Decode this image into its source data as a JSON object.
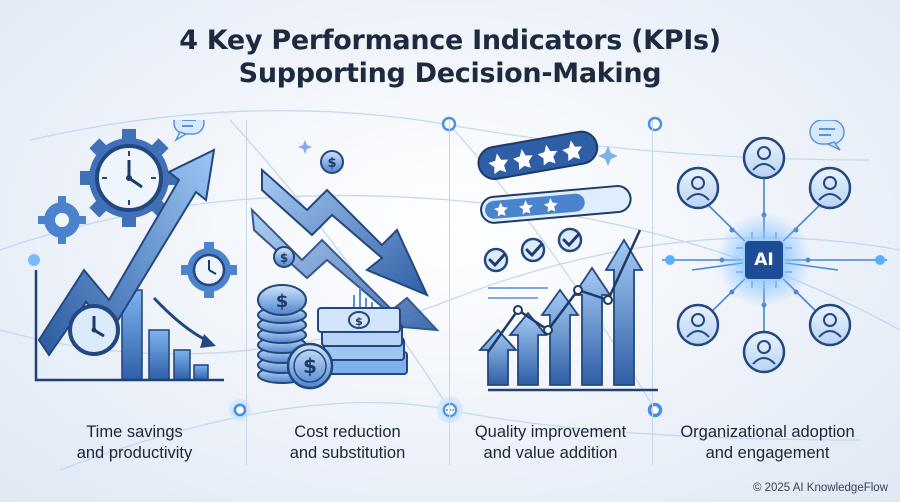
{
  "title": {
    "line1": "4 Key Performance Indicators (KPIs)",
    "line2": "Supporting Decision-Making"
  },
  "panels": [
    {
      "label_line1": "Time savings",
      "label_line2": "and productivity",
      "icon": "clock-gears-growth-icon"
    },
    {
      "label_line1": "Cost reduction",
      "label_line2": "and substitution",
      "icon": "coins-banknotes-downtrend-icon"
    },
    {
      "label_line1": "Quality improvement",
      "label_line2": "and value addition",
      "icon": "stars-checkmarks-uptrend-icon"
    },
    {
      "label_line1": "Organizational adoption",
      "label_line2": "and engagement",
      "icon": "ai-people-network-icon"
    }
  ],
  "ai_chip": {
    "label": "AI"
  },
  "footer": {
    "copyright": "© 2025 AI KnowledgeFlow"
  },
  "colors": {
    "accent": "#3a7bd5",
    "dark_blue": "#2a4d86",
    "light_blue": "#bcd6f5",
    "glow": "#5ab0ff",
    "title_text": "#1e2a3f"
  }
}
